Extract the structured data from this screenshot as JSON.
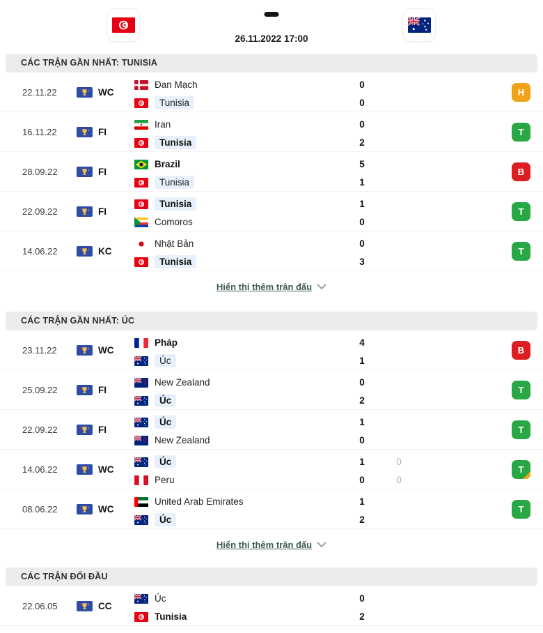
{
  "header": {
    "home_flag": "flag-tunisia",
    "away_flag": "flag-australia",
    "datetime": "26.11.2022 17:00"
  },
  "colors": {
    "win": "#27a844",
    "draw": "#f0a319",
    "loss": "#dc1e22",
    "highlight": "#e8f1fb",
    "competition_badge_blue": "#2e4ca5",
    "link": "#3e5953"
  },
  "sections": [
    {
      "title": "CÁC TRẬN GẦN NHẤT: TUNISIA",
      "show_more_label": "Hiển thị thêm trận đấu",
      "matches": [
        {
          "date": "22.11.22",
          "competition": "WC",
          "home": {
            "name": "Đan Mạch",
            "flag": "flag-denmark",
            "bold": false,
            "highlight": false
          },
          "away": {
            "name": "Tunisia",
            "flag": "flag-tunisia",
            "bold": false,
            "highlight": true
          },
          "home_score": "0",
          "away_score": "0",
          "home_score_secondary": "",
          "away_score_secondary": "",
          "result": {
            "letter": "H",
            "type": "draw",
            "penalty": false
          }
        },
        {
          "date": "16.11.22",
          "competition": "FI",
          "home": {
            "name": "Iran",
            "flag": "flag-iran",
            "bold": false,
            "highlight": false
          },
          "away": {
            "name": "Tunisia",
            "flag": "flag-tunisia",
            "bold": true,
            "highlight": true
          },
          "home_score": "0",
          "away_score": "2",
          "home_score_secondary": "",
          "away_score_secondary": "",
          "result": {
            "letter": "T",
            "type": "win",
            "penalty": false
          }
        },
        {
          "date": "28.09.22",
          "competition": "FI",
          "home": {
            "name": "Brazil",
            "flag": "flag-brazil",
            "bold": true,
            "highlight": false
          },
          "away": {
            "name": "Tunisia",
            "flag": "flag-tunisia",
            "bold": false,
            "highlight": true
          },
          "home_score": "5",
          "away_score": "1",
          "home_score_secondary": "",
          "away_score_secondary": "",
          "result": {
            "letter": "B",
            "type": "loss",
            "penalty": false
          }
        },
        {
          "date": "22.09.22",
          "competition": "FI",
          "home": {
            "name": "Tunisia",
            "flag": "flag-tunisia",
            "bold": true,
            "highlight": true
          },
          "away": {
            "name": "Comoros",
            "flag": "flag-comoros",
            "bold": false,
            "highlight": false
          },
          "home_score": "1",
          "away_score": "0",
          "home_score_secondary": "",
          "away_score_secondary": "",
          "result": {
            "letter": "T",
            "type": "win",
            "penalty": false
          }
        },
        {
          "date": "14.06.22",
          "competition": "KC",
          "home": {
            "name": "Nhật Bản",
            "flag": "flag-japan",
            "bold": false,
            "highlight": false
          },
          "away": {
            "name": "Tunisia",
            "flag": "flag-tunisia",
            "bold": true,
            "highlight": true
          },
          "home_score": "0",
          "away_score": "3",
          "home_score_secondary": "",
          "away_score_secondary": "",
          "result": {
            "letter": "T",
            "type": "win",
            "penalty": false
          }
        }
      ]
    },
    {
      "title": "CÁC TRẬN GẦN NHẤT: ÚC",
      "show_more_label": "Hiển thị thêm trận đấu",
      "matches": [
        {
          "date": "23.11.22",
          "competition": "WC",
          "home": {
            "name": "Pháp",
            "flag": "flag-france",
            "bold": true,
            "highlight": false
          },
          "away": {
            "name": "Úc",
            "flag": "flag-australia",
            "bold": false,
            "highlight": true
          },
          "home_score": "4",
          "away_score": "1",
          "home_score_secondary": "",
          "away_score_secondary": "",
          "result": {
            "letter": "B",
            "type": "loss",
            "penalty": false
          }
        },
        {
          "date": "25.09.22",
          "competition": "FI",
          "home": {
            "name": "New Zealand",
            "flag": "flag-newzealand",
            "bold": false,
            "highlight": false
          },
          "away": {
            "name": "Úc",
            "flag": "flag-australia",
            "bold": true,
            "highlight": true
          },
          "home_score": "0",
          "away_score": "2",
          "home_score_secondary": "",
          "away_score_secondary": "",
          "result": {
            "letter": "T",
            "type": "win",
            "penalty": false
          }
        },
        {
          "date": "22.09.22",
          "competition": "FI",
          "home": {
            "name": "Úc",
            "flag": "flag-australia",
            "bold": true,
            "highlight": true
          },
          "away": {
            "name": "New Zealand",
            "flag": "flag-newzealand",
            "bold": false,
            "highlight": false
          },
          "home_score": "1",
          "away_score": "0",
          "home_score_secondary": "",
          "away_score_secondary": "",
          "result": {
            "letter": "T",
            "type": "win",
            "penalty": false
          }
        },
        {
          "date": "14.06.22",
          "competition": "WC",
          "home": {
            "name": "Úc",
            "flag": "flag-australia",
            "bold": true,
            "highlight": true
          },
          "away": {
            "name": "Peru",
            "flag": "flag-peru",
            "bold": false,
            "highlight": false
          },
          "home_score": "1",
          "away_score": "0",
          "home_score_secondary": "0",
          "away_score_secondary": "0",
          "result": {
            "letter": "T",
            "type": "win",
            "penalty": true
          }
        },
        {
          "date": "08.06.22",
          "competition": "WC",
          "home": {
            "name": "United Arab Emirates",
            "flag": "flag-uae",
            "bold": false,
            "highlight": false
          },
          "away": {
            "name": "Úc",
            "flag": "flag-australia",
            "bold": true,
            "highlight": true
          },
          "home_score": "1",
          "away_score": "2",
          "home_score_secondary": "",
          "away_score_secondary": "",
          "result": {
            "letter": "T",
            "type": "win",
            "penalty": false
          }
        }
      ]
    },
    {
      "title": "CÁC TRẬN ĐỐI ĐẦU",
      "show_more_label": "",
      "matches": [
        {
          "date": "22.06.05",
          "competition": "CC",
          "home": {
            "name": "Úc",
            "flag": "flag-australia",
            "bold": false,
            "highlight": false
          },
          "away": {
            "name": "Tunisia",
            "flag": "flag-tunisia",
            "bold": true,
            "highlight": false
          },
          "home_score": "0",
          "away_score": "2",
          "home_score_secondary": "",
          "away_score_secondary": "",
          "result": null
        }
      ]
    }
  ]
}
